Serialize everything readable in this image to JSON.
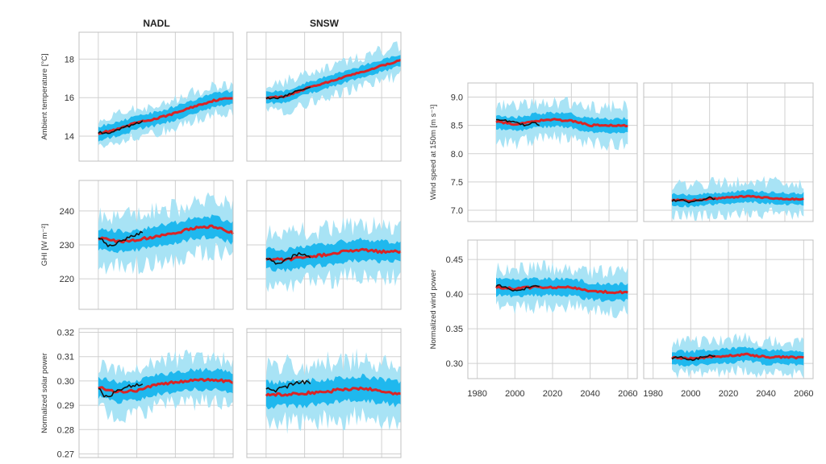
{
  "figure": {
    "column_titles": [
      "NADL",
      "SNSW"
    ],
    "colors": {
      "outer_range": "#a8e3f5",
      "inner_range": "#1fb8ee",
      "ensemble_mean": "#d92425",
      "observed": "#111111",
      "grid": "#d0d0d0",
      "frame": "#c0c0c0"
    }
  },
  "chart_data": [
    {
      "id": "temp-nadl",
      "type": "area",
      "region": "NADL",
      "ylabel": "Ambient temperature [°C]",
      "xlim": [
        1980,
        2060
      ],
      "ylim": [
        12.7,
        19.4
      ],
      "yticks": [
        14,
        16,
        18
      ],
      "grid": true,
      "mean": {
        "x": [
          1990,
          2000,
          2010,
          2020,
          2030,
          2040,
          2050,
          2060
        ],
        "y": [
          14.15,
          14.35,
          14.7,
          14.9,
          15.2,
          15.55,
          15.85,
          16.0
        ]
      },
      "observed": {
        "x": [
          1990,
          1995,
          2000,
          2005,
          2010,
          2013
        ],
        "y": [
          14.2,
          14.1,
          14.3,
          14.5,
          14.65,
          14.75
        ]
      },
      "inner_halfwidth": 0.35,
      "outer_halfwidth": 0.8
    },
    {
      "id": "temp-snsw",
      "type": "area",
      "region": "SNSW",
      "xlim": [
        1980,
        2060
      ],
      "ylim": [
        12.7,
        19.4
      ],
      "grid": true,
      "mean": {
        "x": [
          1990,
          2000,
          2010,
          2020,
          2030,
          2040,
          2050,
          2060
        ],
        "y": [
          16.0,
          16.05,
          16.45,
          16.75,
          17.05,
          17.35,
          17.65,
          17.95
        ]
      },
      "observed": {
        "x": [
          1990,
          1995,
          2000,
          2005,
          2010,
          2013
        ],
        "y": [
          16.0,
          15.95,
          16.1,
          16.3,
          16.45,
          16.6
        ]
      },
      "inner_halfwidth": 0.3,
      "outer_halfwidth": 0.85
    },
    {
      "id": "ghi-nadl",
      "type": "area",
      "region": "NADL",
      "ylabel": "GHI [W m⁻²]",
      "xlim": [
        1980,
        2060
      ],
      "ylim": [
        211,
        249
      ],
      "yticks": [
        220,
        230,
        240
      ],
      "grid": true,
      "mean": {
        "x": [
          1990,
          2000,
          2010,
          2020,
          2030,
          2040,
          2050,
          2060
        ],
        "y": [
          232,
          231,
          231.5,
          232.5,
          233.5,
          235,
          235.5,
          233.5
        ]
      },
      "observed": {
        "x": [
          1990,
          1995,
          2000,
          2005,
          2010,
          2013
        ],
        "y": [
          232.5,
          229.5,
          230.5,
          232,
          233,
          234
        ]
      },
      "inner_halfwidth": 3,
      "outer_halfwidth": 8
    },
    {
      "id": "ghi-snsw",
      "type": "area",
      "region": "SNSW",
      "xlim": [
        1980,
        2060
      ],
      "ylim": [
        211,
        249
      ],
      "grid": true,
      "mean": {
        "x": [
          1990,
          2000,
          2010,
          2020,
          2030,
          2040,
          2050,
          2060
        ],
        "y": [
          226,
          225.5,
          226.5,
          227,
          228,
          228.5,
          228,
          228
        ]
      },
      "observed": {
        "x": [
          1990,
          1995,
          2000,
          2005,
          2010,
          2013
        ],
        "y": [
          226.5,
          224.5,
          225.5,
          227,
          227.5,
          226.5
        ]
      },
      "inner_halfwidth": 3,
      "outer_halfwidth": 8
    },
    {
      "id": "solar-nadl",
      "type": "area",
      "region": "NADL",
      "ylabel": "Normalized solar power",
      "xlim": [
        1980,
        2060
      ],
      "ylim": [
        0.2685,
        0.3215
      ],
      "yticks": [
        0.27,
        0.28,
        0.29,
        0.3,
        0.31,
        0.32
      ],
      "grid": true,
      "mean": {
        "x": [
          1990,
          2000,
          2010,
          2020,
          2030,
          2040,
          2050,
          2060
        ],
        "y": [
          0.2975,
          0.2955,
          0.296,
          0.2985,
          0.2995,
          0.3005,
          0.3005,
          0.2995
        ]
      },
      "observed": {
        "x": [
          1990,
          1993,
          1997,
          2001,
          2005,
          2009,
          2013
        ],
        "y": [
          0.2975,
          0.2935,
          0.2945,
          0.2965,
          0.2975,
          0.2985,
          0.299
        ]
      },
      "inner_halfwidth": 0.004,
      "outer_halfwidth": 0.01
    },
    {
      "id": "solar-snsw",
      "type": "area",
      "region": "SNSW",
      "xlim": [
        1980,
        2060
      ],
      "ylim": [
        0.2685,
        0.3215
      ],
      "grid": true,
      "mean": {
        "x": [
          1990,
          2000,
          2010,
          2020,
          2030,
          2040,
          2050,
          2060
        ],
        "y": [
          0.2945,
          0.2945,
          0.295,
          0.2955,
          0.2965,
          0.297,
          0.296,
          0.2945
        ]
      },
      "observed": {
        "x": [
          1990,
          1994,
          1998,
          2002,
          2006,
          2010,
          2013
        ],
        "y": [
          0.2975,
          0.296,
          0.297,
          0.298,
          0.2995,
          0.2995,
          0.299
        ]
      },
      "inner_halfwidth": 0.005,
      "outer_halfwidth": 0.013
    },
    {
      "id": "wind-nadl",
      "type": "area",
      "region": "NADL",
      "ylabel": "Wind speed at 150m [m s⁻¹]",
      "xlim": [
        1975,
        2065
      ],
      "ylim": [
        6.8,
        9.25
      ],
      "yticks": [
        7.0,
        7.5,
        8.0,
        8.5,
        9.0
      ],
      "grid": true,
      "mean": {
        "x": [
          1990,
          2000,
          2010,
          2020,
          2030,
          2040,
          2050,
          2060
        ],
        "y": [
          8.57,
          8.52,
          8.58,
          8.6,
          8.58,
          8.5,
          8.5,
          8.5
        ]
      },
      "observed": {
        "x": [
          1990,
          1995,
          2000,
          2005,
          2010,
          2013
        ],
        "y": [
          8.62,
          8.58,
          8.55,
          8.5,
          8.55,
          8.5
        ]
      },
      "inner_halfwidth": 0.12,
      "outer_halfwidth": 0.35
    },
    {
      "id": "wind-snsw",
      "type": "area",
      "region": "SNSW",
      "xlim": [
        1975,
        2065
      ],
      "ylim": [
        6.8,
        9.25
      ],
      "grid": true,
      "mean": {
        "x": [
          1990,
          2000,
          2010,
          2020,
          2030,
          2040,
          2050,
          2060
        ],
        "y": [
          7.18,
          7.17,
          7.2,
          7.22,
          7.25,
          7.22,
          7.2,
          7.2
        ]
      },
      "observed": {
        "x": [
          1990,
          1995,
          2000,
          2005,
          2010,
          2013
        ],
        "y": [
          7.17,
          7.18,
          7.14,
          7.18,
          7.22,
          7.2
        ]
      },
      "inner_halfwidth": 0.1,
      "outer_halfwidth": 0.3
    },
    {
      "id": "windpower-nadl",
      "type": "area",
      "region": "NADL",
      "ylabel": "Normalized wind power",
      "xlim": [
        1975,
        2065
      ],
      "xticks": [
        1980,
        2000,
        2020,
        2040,
        2060
      ],
      "ylim": [
        0.278,
        0.478
      ],
      "yticks": [
        0.3,
        0.35,
        0.4,
        0.45
      ],
      "grid": true,
      "mean": {
        "x": [
          1990,
          2000,
          2010,
          2020,
          2030,
          2040,
          2050,
          2060
        ],
        "y": [
          0.41,
          0.408,
          0.41,
          0.41,
          0.41,
          0.404,
          0.403,
          0.403
        ]
      },
      "observed": {
        "x": [
          1990,
          1995,
          2000,
          2005,
          2010,
          2013
        ],
        "y": [
          0.413,
          0.41,
          0.405,
          0.408,
          0.412,
          0.41
        ]
      },
      "inner_halfwidth": 0.012,
      "outer_halfwidth": 0.03
    },
    {
      "id": "windpower-snsw",
      "type": "area",
      "region": "SNSW",
      "xlim": [
        1975,
        2065
      ],
      "xticks": [
        1980,
        2000,
        2020,
        2040,
        2060
      ],
      "ylim": [
        0.278,
        0.478
      ],
      "grid": true,
      "mean": {
        "x": [
          1990,
          2000,
          2010,
          2020,
          2030,
          2040,
          2050,
          2060
        ],
        "y": [
          0.308,
          0.307,
          0.309,
          0.311,
          0.313,
          0.309,
          0.309,
          0.308
        ]
      },
      "observed": {
        "x": [
          1990,
          1995,
          2000,
          2005,
          2010,
          2013
        ],
        "y": [
          0.308,
          0.31,
          0.305,
          0.308,
          0.311,
          0.31
        ]
      },
      "inner_halfwidth": 0.01,
      "outer_halfwidth": 0.025
    }
  ]
}
